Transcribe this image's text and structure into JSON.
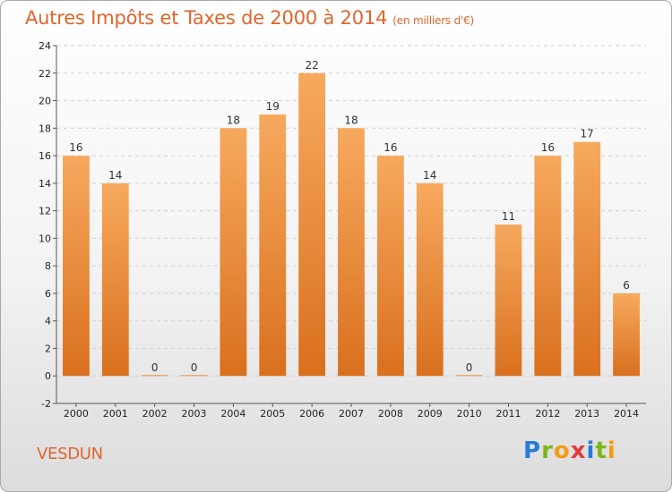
{
  "title": "Autres Impôts et Taxes de 2000 à 2014",
  "subtitle": "(en milliers d'€)",
  "commune": "VESDUN",
  "logo": {
    "letters": [
      "P",
      "r",
      "o",
      "x",
      "i",
      "t",
      "i"
    ],
    "colors": [
      "#2a7bd6",
      "#7cb518",
      "#f39c12",
      "#e23b3b",
      "#2a7bd6",
      "#7cb518",
      "#f39c12"
    ]
  },
  "colors": {
    "title": "#e0652b",
    "bar_top": "#f7a95e",
    "bar_bottom": "#d9701e"
  },
  "chart_data": {
    "type": "bar",
    "title": "Autres Impôts et Taxes de 2000 à 2014",
    "xlabel": "",
    "ylabel": "",
    "categories": [
      "2000",
      "2001",
      "2002",
      "2003",
      "2004",
      "2005",
      "2006",
      "2007",
      "2008",
      "2009",
      "2010",
      "2011",
      "2012",
      "2013",
      "2014"
    ],
    "values": [
      16,
      14,
      0,
      0,
      18,
      19,
      22,
      18,
      16,
      14,
      0,
      11,
      16,
      17,
      6
    ],
    "ylim": [
      -2,
      24
    ],
    "yticks": [
      -2,
      0,
      2,
      4,
      6,
      8,
      10,
      12,
      14,
      16,
      18,
      20,
      22,
      24
    ],
    "grid": true,
    "legend": "none"
  }
}
